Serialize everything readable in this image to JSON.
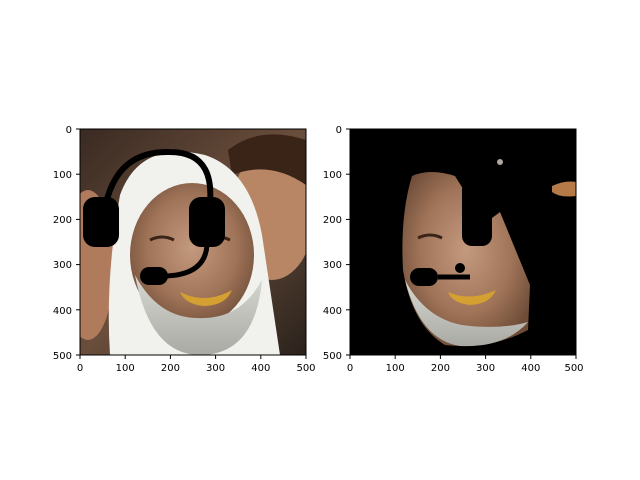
{
  "chart_data": [
    {
      "type": "image",
      "title": "",
      "xlabel": "",
      "ylabel": "",
      "xlim": [
        0,
        500
      ],
      "ylim": [
        500,
        0
      ],
      "xticks": [
        "0",
        "100",
        "200",
        "300",
        "400",
        "500"
      ],
      "yticks": [
        "0",
        "100",
        "200",
        "300",
        "400",
        "500"
      ],
      "content": "photo with headset overlay",
      "overlay_color": "#000000"
    },
    {
      "type": "image",
      "title": "",
      "xlabel": "",
      "ylabel": "",
      "xlim": [
        0,
        500
      ],
      "ylim": [
        500,
        0
      ],
      "xticks": [
        "0",
        "100",
        "200",
        "300",
        "400",
        "500"
      ],
      "yticks": [
        "0",
        "100",
        "200",
        "300",
        "400",
        "500"
      ],
      "content": "segmented face on black background",
      "background_color": "#000000"
    }
  ]
}
